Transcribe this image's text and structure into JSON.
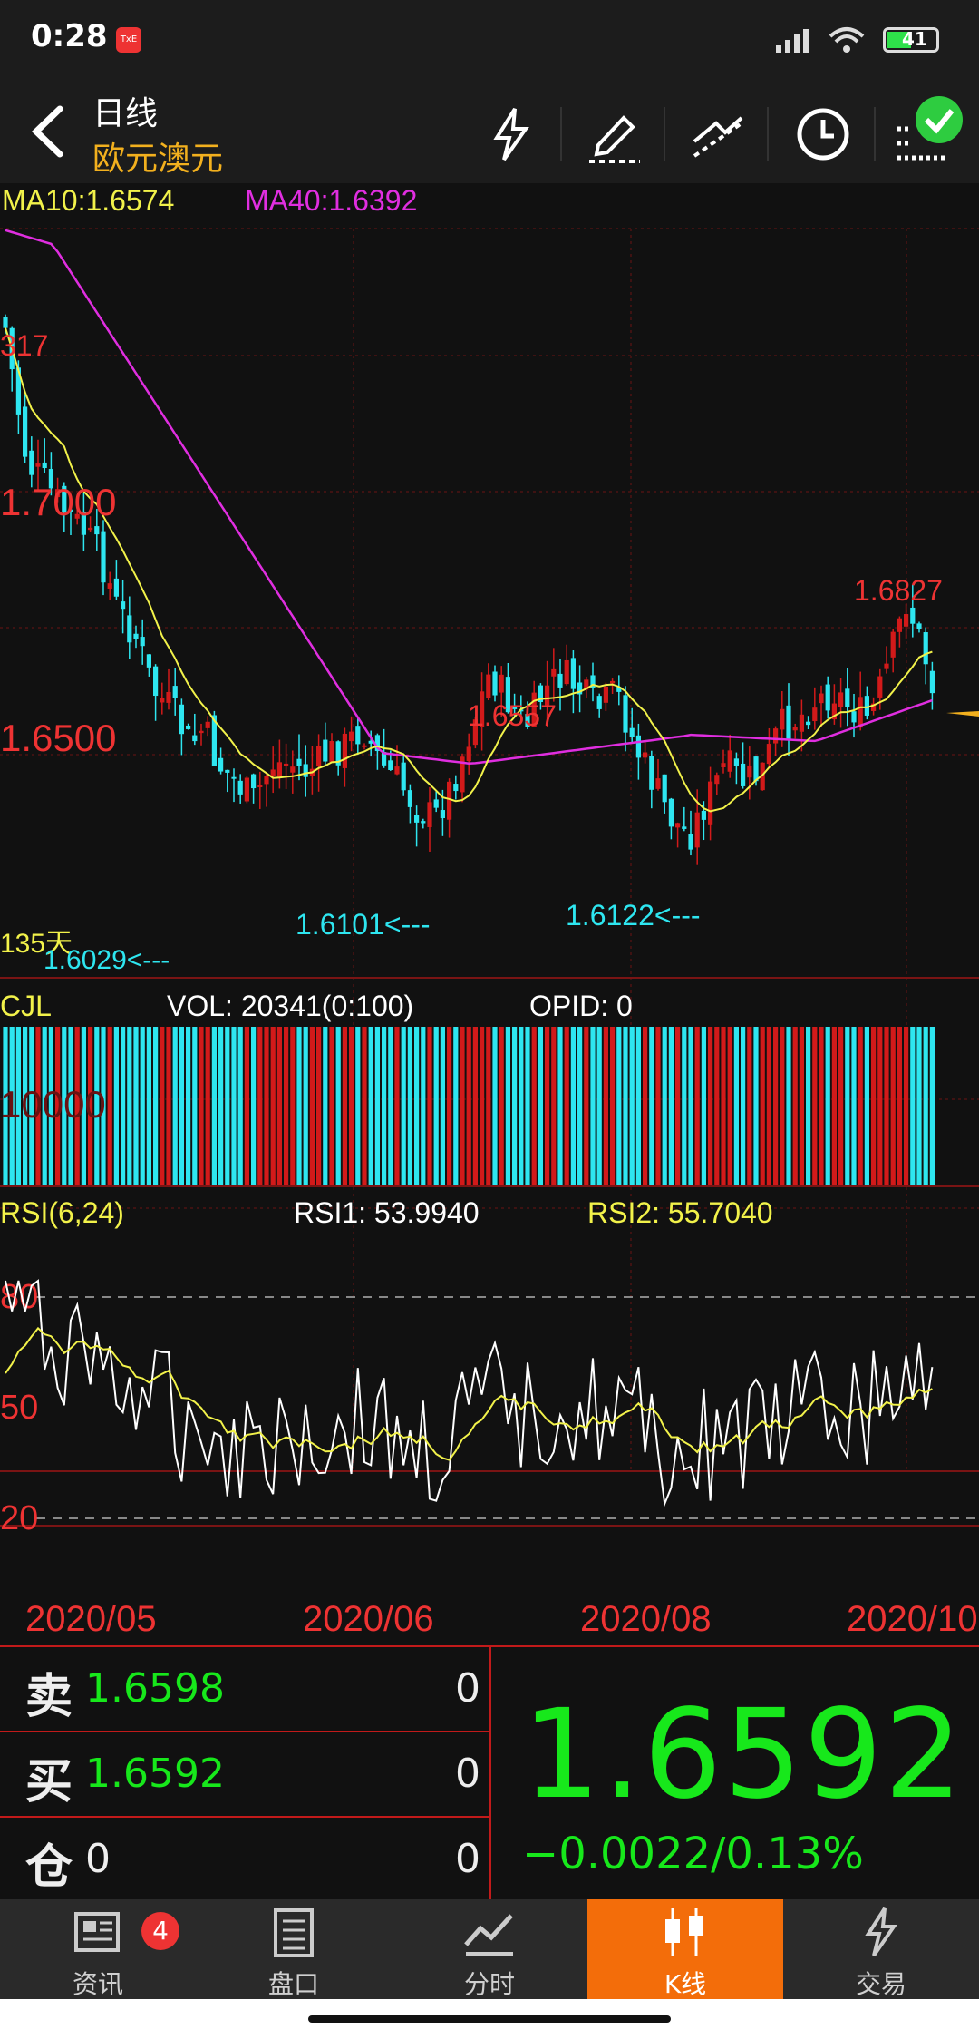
{
  "status": {
    "time": "0:28",
    "app_badge": "TxE",
    "battery": "41"
  },
  "header": {
    "title": "日线",
    "subtitle": "欧元澳元"
  },
  "chart_data": {
    "type": "candlestick",
    "ma_labels": {
      "ma10": "MA10:1.6574",
      "ma40": "MA40:1.6392"
    },
    "y_ticks": [
      "1.7000",
      "1.6500"
    ],
    "annotations": {
      "left_high": "317",
      "high": "1.6827",
      "mid_high": "1.6557",
      "low1": "1.6029<---",
      "low2": "1.6101<---",
      "low3": "1.6122<---",
      "days": "135天"
    },
    "volume": {
      "label": "CJL",
      "vol": "VOL: 20341(0:100)",
      "opid": "OPID: 0",
      "y_tick": "10000"
    },
    "rsi": {
      "label": "RSI(6,24)",
      "rsi1": "RSI1: 53.9940",
      "rsi2": "RSI2: 55.7040",
      "ticks": [
        "80",
        "50",
        "20"
      ]
    },
    "x_labels": [
      "2020/05",
      "2020/06",
      "2020/08",
      "2020/10"
    ],
    "colors": {
      "up": "#d21a1a",
      "down": "#2ee6f0",
      "ma10": "#f2f24a",
      "ma40": "#e02ee0",
      "grid": "#7a1414"
    }
  },
  "quote": {
    "sell_label": "卖",
    "sell_price": "1.6598",
    "sell_qty": "0",
    "buy_label": "买",
    "buy_price": "1.6592",
    "buy_qty": "0",
    "pos_label": "仓",
    "pos_value": "0",
    "pos_qty": "0",
    "last": "1.6592",
    "change": "−0.0022/0.13%"
  },
  "nav": {
    "items": [
      {
        "label": "资讯",
        "badge": "4"
      },
      {
        "label": "盘口"
      },
      {
        "label": "分时"
      },
      {
        "label": "K线"
      },
      {
        "label": "交易"
      }
    ]
  }
}
